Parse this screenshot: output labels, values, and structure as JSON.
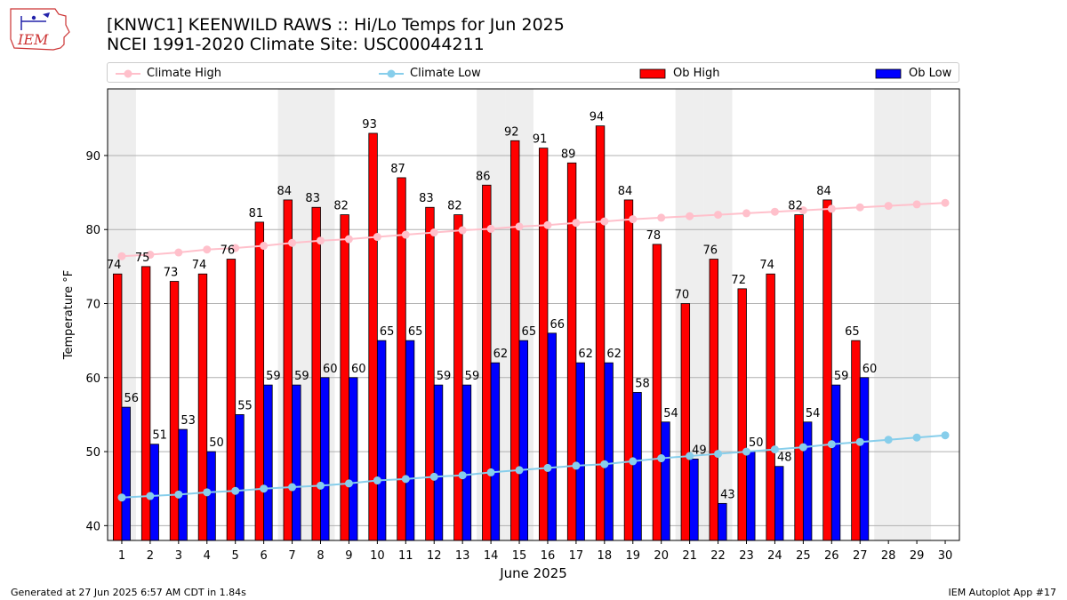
{
  "header": {
    "title_line1": "[KNWC1] KEENWILD RAWS :: Hi/Lo Temps for Jun 2025",
    "title_line2": "NCEI 1991-2020 Climate Site: USC00044211",
    "logo_text": "IEM"
  },
  "legend": {
    "climate_high": "Climate High",
    "climate_low": "Climate Low",
    "ob_high": "Ob High",
    "ob_low": "Ob Low"
  },
  "footer": {
    "generated": "Generated at 27 Jun 2025 6:57 AM CDT in 1.84s",
    "app": "IEM Autoplot App #17"
  },
  "colors": {
    "ob_high": "#ff0000",
    "ob_low": "#0000ff",
    "climate_high": "#ffc0cb",
    "climate_low": "#87ceeb",
    "weekend_shade": "#eeeeee",
    "grid": "#b0b0b0"
  },
  "chart_data": {
    "type": "bar",
    "xlabel": "June 2025",
    "ylabel": "Temperature °F",
    "xlim": [
      0.5,
      30.5
    ],
    "ylim": [
      38,
      99
    ],
    "yticks": [
      40,
      50,
      60,
      70,
      80,
      90
    ],
    "grid": "horizontal",
    "legend_position": "top",
    "x": [
      1,
      2,
      3,
      4,
      5,
      6,
      7,
      8,
      9,
      10,
      11,
      12,
      13,
      14,
      15,
      16,
      17,
      18,
      19,
      20,
      21,
      22,
      23,
      24,
      25,
      26,
      27,
      28,
      29,
      30
    ],
    "weekend_days": [
      1,
      7,
      8,
      14,
      15,
      21,
      22,
      28,
      29
    ],
    "series": [
      {
        "name": "Ob High",
        "kind": "bar",
        "values": [
          74,
          75,
          73,
          74,
          76,
          81,
          84,
          83,
          82,
          93,
          87,
          83,
          82,
          86,
          92,
          91,
          89,
          94,
          84,
          78,
          70,
          76,
          72,
          74,
          82,
          84,
          65,
          null,
          null,
          null
        ]
      },
      {
        "name": "Ob Low",
        "kind": "bar",
        "values": [
          56,
          51,
          53,
          50,
          55,
          59,
          59,
          60,
          60,
          65,
          65,
          59,
          59,
          62,
          65,
          66,
          62,
          62,
          58,
          54,
          49,
          43,
          50,
          48,
          54,
          59,
          60,
          null,
          null,
          null
        ]
      },
      {
        "name": "Climate High",
        "kind": "line",
        "values": [
          76.4,
          76.6,
          76.9,
          77.3,
          77.5,
          77.8,
          78.2,
          78.5,
          78.7,
          79.0,
          79.3,
          79.6,
          79.9,
          80.1,
          80.4,
          80.6,
          80.9,
          81.1,
          81.4,
          81.6,
          81.8,
          82.0,
          82.2,
          82.4,
          82.6,
          82.8,
          83.0,
          83.2,
          83.4,
          83.6
        ]
      },
      {
        "name": "Climate Low",
        "kind": "line",
        "values": [
          43.8,
          44.0,
          44.2,
          44.5,
          44.7,
          45.0,
          45.2,
          45.4,
          45.7,
          46.1,
          46.3,
          46.6,
          46.8,
          47.2,
          47.5,
          47.8,
          48.1,
          48.3,
          48.7,
          49.1,
          49.4,
          49.7,
          50.0,
          50.3,
          50.6,
          51.0,
          51.3,
          51.6,
          51.9,
          52.2
        ]
      }
    ]
  }
}
